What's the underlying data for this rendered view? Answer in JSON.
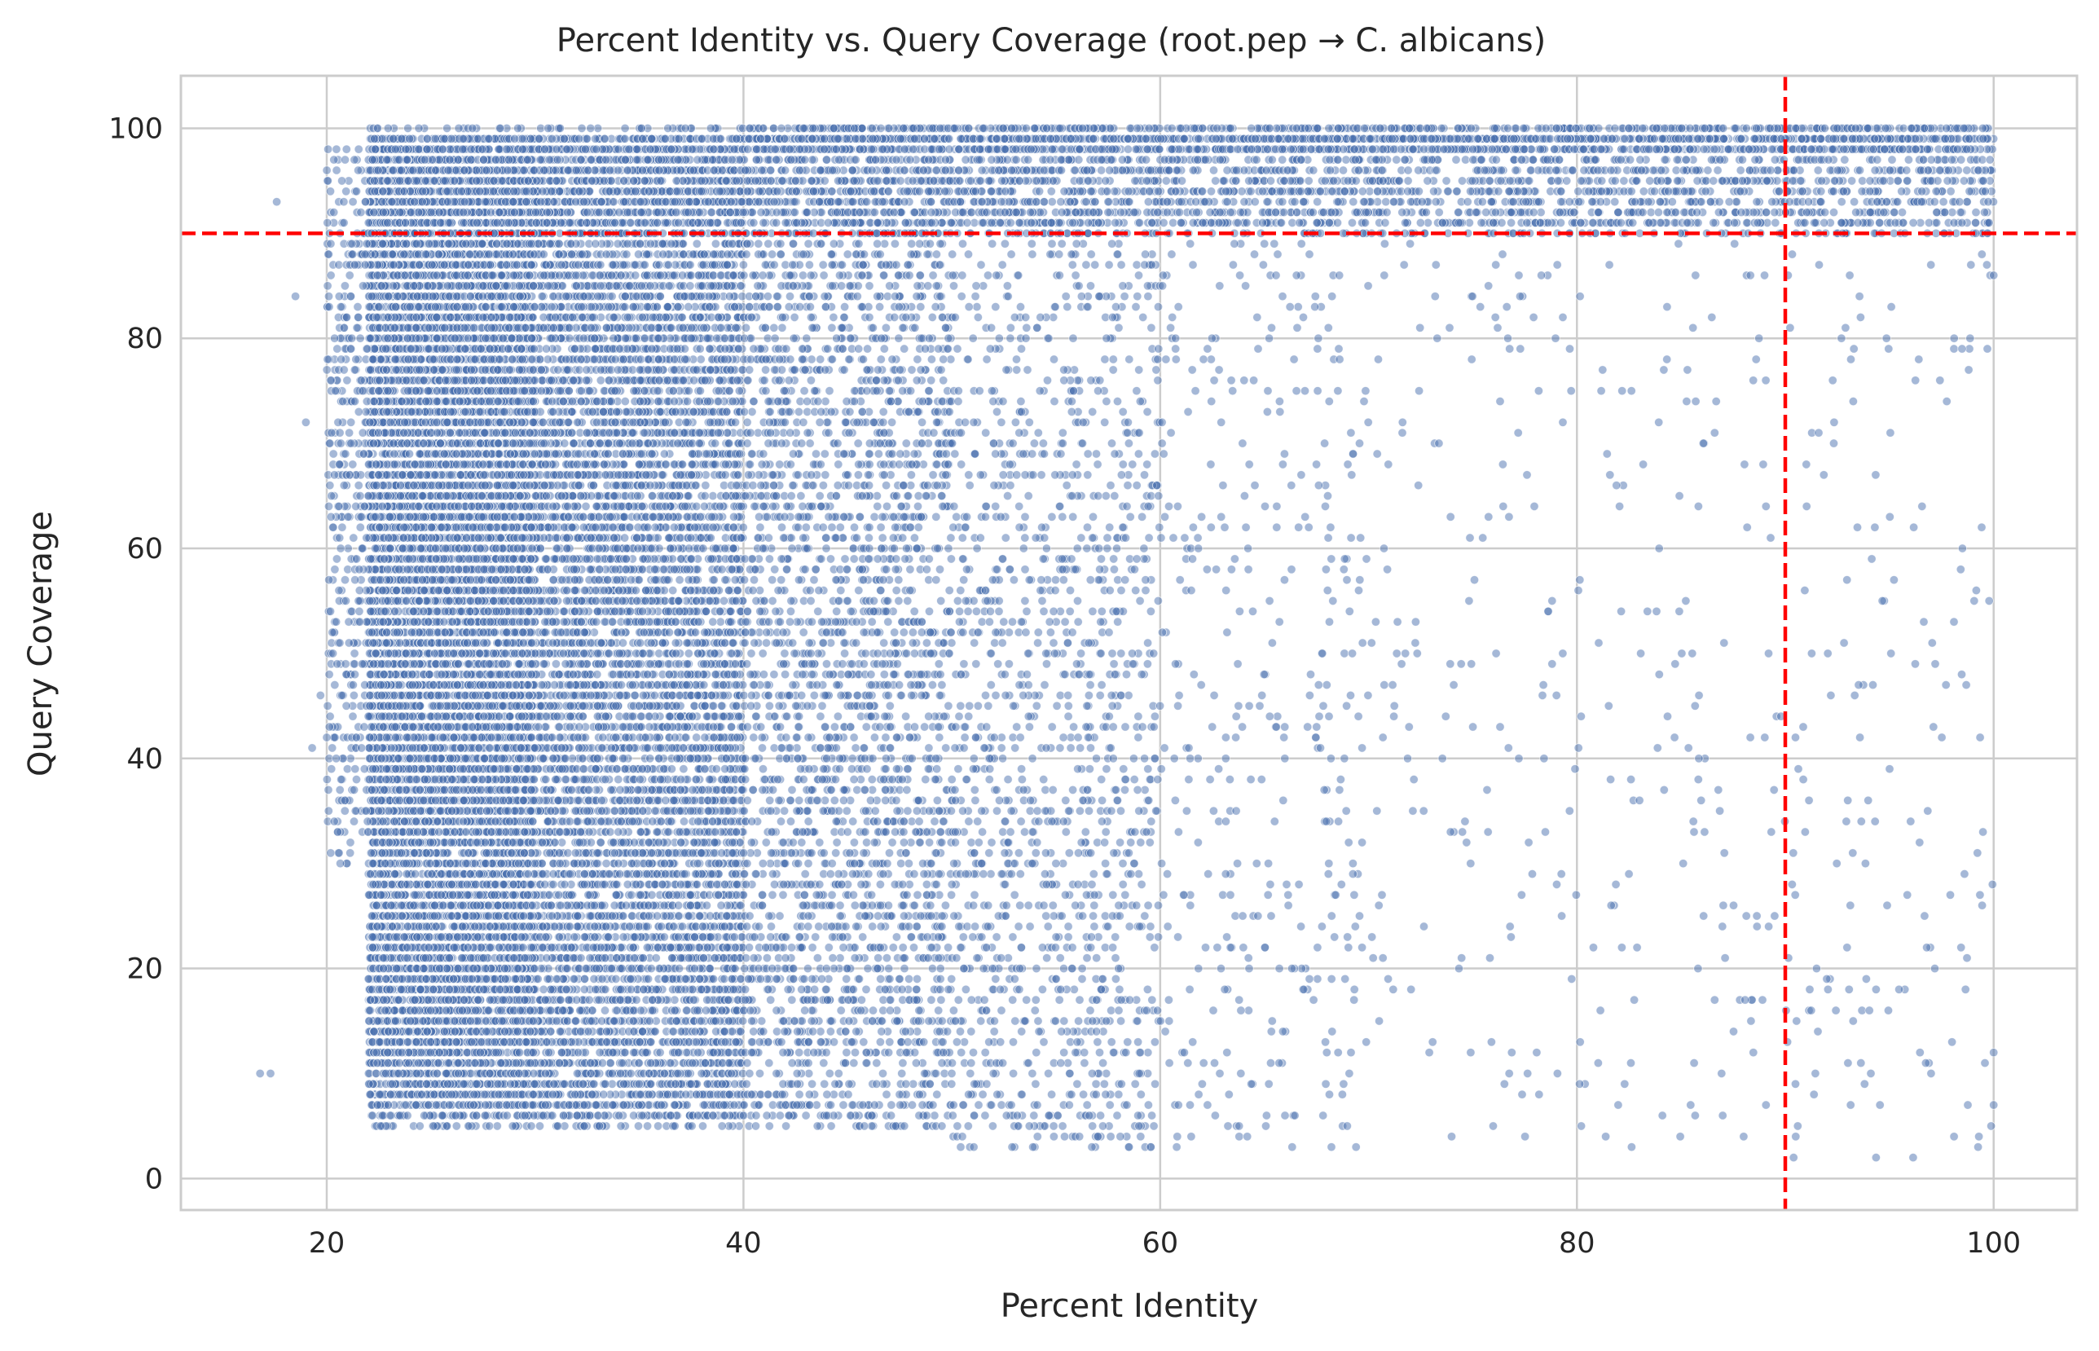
{
  "chart_data": {
    "type": "scatter",
    "title": "Percent Identity vs. Query Coverage (root.pep → C. albicans)",
    "xlabel": "Percent Identity",
    "ylabel": "Query Coverage",
    "xlim": [
      13,
      104
    ],
    "ylim": [
      -3,
      105
    ],
    "xticks": [
      20,
      40,
      60,
      80,
      100
    ],
    "yticks": [
      0,
      20,
      40,
      60,
      80,
      100
    ],
    "grid": true,
    "legend": "none",
    "colors": {
      "points": "#4c72b0",
      "reference_lines": "#ff0000",
      "grid": "#cccccc",
      "frame": "#cccccc"
    },
    "reference_lines": [
      {
        "orientation": "vertical",
        "x": 90,
        "style": "dashed"
      },
      {
        "orientation": "horizontal",
        "y": 90,
        "style": "dashed"
      }
    ],
    "series": [
      {
        "marker": "circle",
        "point_alpha": 0.5,
        "density_regions": [
          {
            "x_range": [
              22,
              40
            ],
            "y_range": [
              5,
              99
            ],
            "count": 14000
          },
          {
            "x_range": [
              22,
              30
            ],
            "y_range": [
              8,
              99
            ],
            "count": 6000
          },
          {
            "x_range": [
              20,
              23
            ],
            "y_range": [
              30,
              99
            ],
            "count": 600
          },
          {
            "x_range": [
              40,
              50
            ],
            "y_range": [
              5,
              100
            ],
            "count": 3000
          },
          {
            "x_range": [
              50,
              60
            ],
            "y_range": [
              3,
              100
            ],
            "count": 1500
          },
          {
            "x_range": [
              60,
              70
            ],
            "y_range": [
              3,
              100
            ],
            "count": 450
          },
          {
            "x_range": [
              70,
              90
            ],
            "y_range": [
              3,
              100
            ],
            "count": 320
          },
          {
            "x_range": [
              90,
              100
            ],
            "y_range": [
              2,
              100
            ],
            "count": 180
          },
          {
            "x_range": [
              22,
              100
            ],
            "y_range": [
              90,
              100
            ],
            "count": 3500
          },
          {
            "x_range": [
              40,
              100
            ],
            "y_range": [
              98,
              100
            ],
            "count": 1200
          }
        ],
        "notable_points": [
          [
            16.8,
            10
          ],
          [
            17.3,
            10
          ],
          [
            17.6,
            93
          ],
          [
            18.5,
            84
          ],
          [
            19.0,
            72
          ],
          [
            19.3,
            41
          ],
          [
            19.7,
            46
          ],
          [
            20.0,
            42
          ],
          [
            88.0,
            4
          ],
          [
            90.4,
            2
          ],
          [
            90.5,
            4
          ],
          [
            90.6,
            5
          ],
          [
            100,
            7
          ],
          [
            100,
            12
          ],
          [
            100,
            86
          ],
          [
            89.2,
            50
          ],
          [
            91.5,
            20
          ],
          [
            98.5,
            60
          ]
        ]
      }
    ]
  }
}
